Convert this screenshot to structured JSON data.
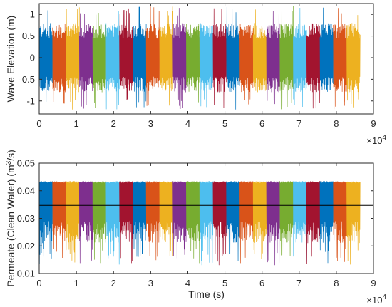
{
  "chart_data": [
    {
      "type": "line",
      "title": "",
      "xlabel": "",
      "ylabel": "Wave Elevation (m)",
      "xlim": [
        0,
        90000
      ],
      "ylim": [
        -1.3,
        1.25
      ],
      "x_ticks": [
        0,
        1,
        2,
        3,
        4,
        5,
        6,
        7,
        8,
        9
      ],
      "x_multiplier": "×10^4",
      "x_multiplier_base": "×10",
      "x_multiplier_exp": "4",
      "y_ticks": [
        "-1",
        "-0.5",
        "0",
        "0.5",
        "1"
      ],
      "y_tick_values": [
        -1,
        -0.5,
        0,
        0.5,
        1
      ],
      "grid": false,
      "segment_duration_s": 3600,
      "x_end": 86400,
      "segments_count": 24,
      "series_colors": [
        "#0072BD",
        "#D95319",
        "#EDB120",
        "#7E2F8E",
        "#77AC30",
        "#4DBEEE",
        "#A2142F"
      ],
      "envelope": {
        "typical_range": [
          -0.8,
          0.8
        ],
        "peak_range": [
          -1.2,
          1.2
        ]
      }
    },
    {
      "type": "line",
      "title": "",
      "xlabel": "Time (s)",
      "ylabel_main": "Permeate (Clean Water) (m",
      "ylabel_sup": "3",
      "ylabel_tail": "/s)",
      "xlim": [
        0,
        90000
      ],
      "ylim": [
        0.01,
        0.05
      ],
      "x_ticks": [
        0,
        1,
        2,
        3,
        4,
        5,
        6,
        7,
        8,
        9
      ],
      "x_multiplier_base": "×10",
      "x_multiplier_exp": "4",
      "y_ticks": [
        "0.01",
        "0.02",
        "0.03",
        "0.04",
        "0.05"
      ],
      "y_tick_values": [
        0.01,
        0.02,
        0.03,
        0.04,
        0.05
      ],
      "grid": false,
      "segment_duration_s": 3600,
      "x_end": 86400,
      "segments_count": 24,
      "series_colors": [
        "#0072BD",
        "#D95319",
        "#EDB120",
        "#7E2F8E",
        "#77AC30",
        "#4DBEEE",
        "#A2142F"
      ],
      "upper_cap": 0.0435,
      "typical_lower": 0.025,
      "min_lower": 0.013,
      "mean_line": {
        "value": 0.0347,
        "color": "#000000"
      }
    }
  ]
}
